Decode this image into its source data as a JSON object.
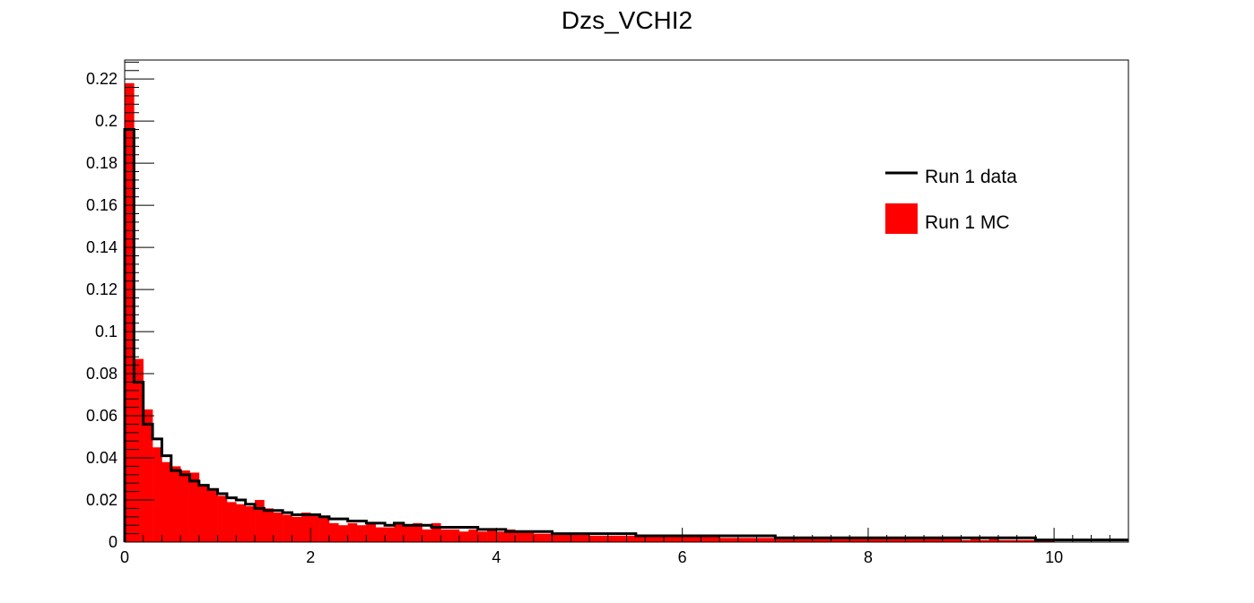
{
  "chart_data": {
    "type": "bar",
    "title": "Dzs_VCHI2",
    "xlabel": "",
    "ylabel": "",
    "xlim": [
      0,
      10.8
    ],
    "ylim": [
      0,
      0.229
    ],
    "bin_width": 0.1,
    "x_ticks": [
      0,
      2,
      4,
      6,
      8,
      10
    ],
    "x_tick_labels": [
      "0",
      "2",
      "4",
      "6",
      "8",
      "10"
    ],
    "y_ticks": [
      0,
      0.02,
      0.04,
      0.06,
      0.08,
      0.1,
      0.12,
      0.14,
      0.16,
      0.18,
      0.2,
      0.22
    ],
    "y_tick_labels": [
      "0",
      "0.02",
      "0.04",
      "0.06",
      "0.08",
      "0.1",
      "0.12",
      "0.14",
      "0.16",
      "0.18",
      "0.2",
      "0.22"
    ],
    "grid": false,
    "legend": {
      "placement": "top-right"
    },
    "series": [
      {
        "name": "Run 1 MC",
        "style": "filled",
        "color": "#ff0000",
        "values": [
          0.218,
          0.087,
          0.063,
          0.045,
          0.038,
          0.036,
          0.034,
          0.033,
          0.027,
          0.025,
          0.022,
          0.019,
          0.018,
          0.017,
          0.02,
          0.016,
          0.014,
          0.013,
          0.012,
          0.014,
          0.013,
          0.012,
          0.009,
          0.008,
          0.009,
          0.008,
          0.009,
          0.007,
          0.007,
          0.009,
          0.008,
          0.009,
          0.006,
          0.009,
          0.006,
          0.006,
          0.005,
          0.006,
          0.005,
          0.006,
          0.005,
          0.006,
          0.005,
          0.005,
          0.004,
          0.004,
          0.004,
          0.004,
          0.004,
          0.004,
          0.003,
          0.003,
          0.003,
          0.003,
          0.003,
          0.003,
          0.003,
          0.003,
          0.003,
          0.003,
          0.003,
          0.003,
          0.003,
          0.003,
          0.002,
          0.002,
          0.002,
          0.002,
          0.002,
          0.002,
          0.002,
          0.002,
          0.002,
          0.002,
          0.002,
          0.002,
          0.002,
          0.002,
          0.002,
          0.002,
          0.002,
          0.002,
          0.002,
          0.002,
          0.002,
          0.002,
          0.002,
          0.002,
          0.002,
          0.002,
          0.001,
          0.002,
          0.001,
          0.002,
          0.001,
          0.001,
          0.001,
          0.001,
          0.001,
          0.001,
          0.0,
          0.0,
          0.0,
          0.0,
          0.0,
          0.0,
          0.0,
          0.0
        ]
      },
      {
        "name": "Run 1 data",
        "style": "step",
        "color": "#000000",
        "values": [
          0.196,
          0.076,
          0.056,
          0.049,
          0.041,
          0.034,
          0.032,
          0.029,
          0.027,
          0.025,
          0.023,
          0.021,
          0.02,
          0.018,
          0.016,
          0.015,
          0.015,
          0.014,
          0.013,
          0.013,
          0.013,
          0.012,
          0.011,
          0.011,
          0.01,
          0.01,
          0.009,
          0.009,
          0.008,
          0.009,
          0.008,
          0.008,
          0.008,
          0.007,
          0.007,
          0.007,
          0.007,
          0.007,
          0.006,
          0.006,
          0.006,
          0.005,
          0.005,
          0.005,
          0.005,
          0.005,
          0.004,
          0.004,
          0.004,
          0.004,
          0.004,
          0.004,
          0.004,
          0.004,
          0.004,
          0.003,
          0.003,
          0.003,
          0.003,
          0.003,
          0.003,
          0.003,
          0.003,
          0.003,
          0.003,
          0.003,
          0.003,
          0.003,
          0.003,
          0.003,
          0.002,
          0.002,
          0.002,
          0.002,
          0.002,
          0.002,
          0.002,
          0.002,
          0.002,
          0.002,
          0.002,
          0.002,
          0.002,
          0.002,
          0.002,
          0.002,
          0.002,
          0.002,
          0.002,
          0.002,
          0.002,
          0.002,
          0.002,
          0.002,
          0.002,
          0.002,
          0.002,
          0.002,
          0.001,
          0.001,
          0.001,
          0.001,
          0.001,
          0.001,
          0.001,
          0.001,
          0.001,
          0.001
        ]
      }
    ]
  }
}
